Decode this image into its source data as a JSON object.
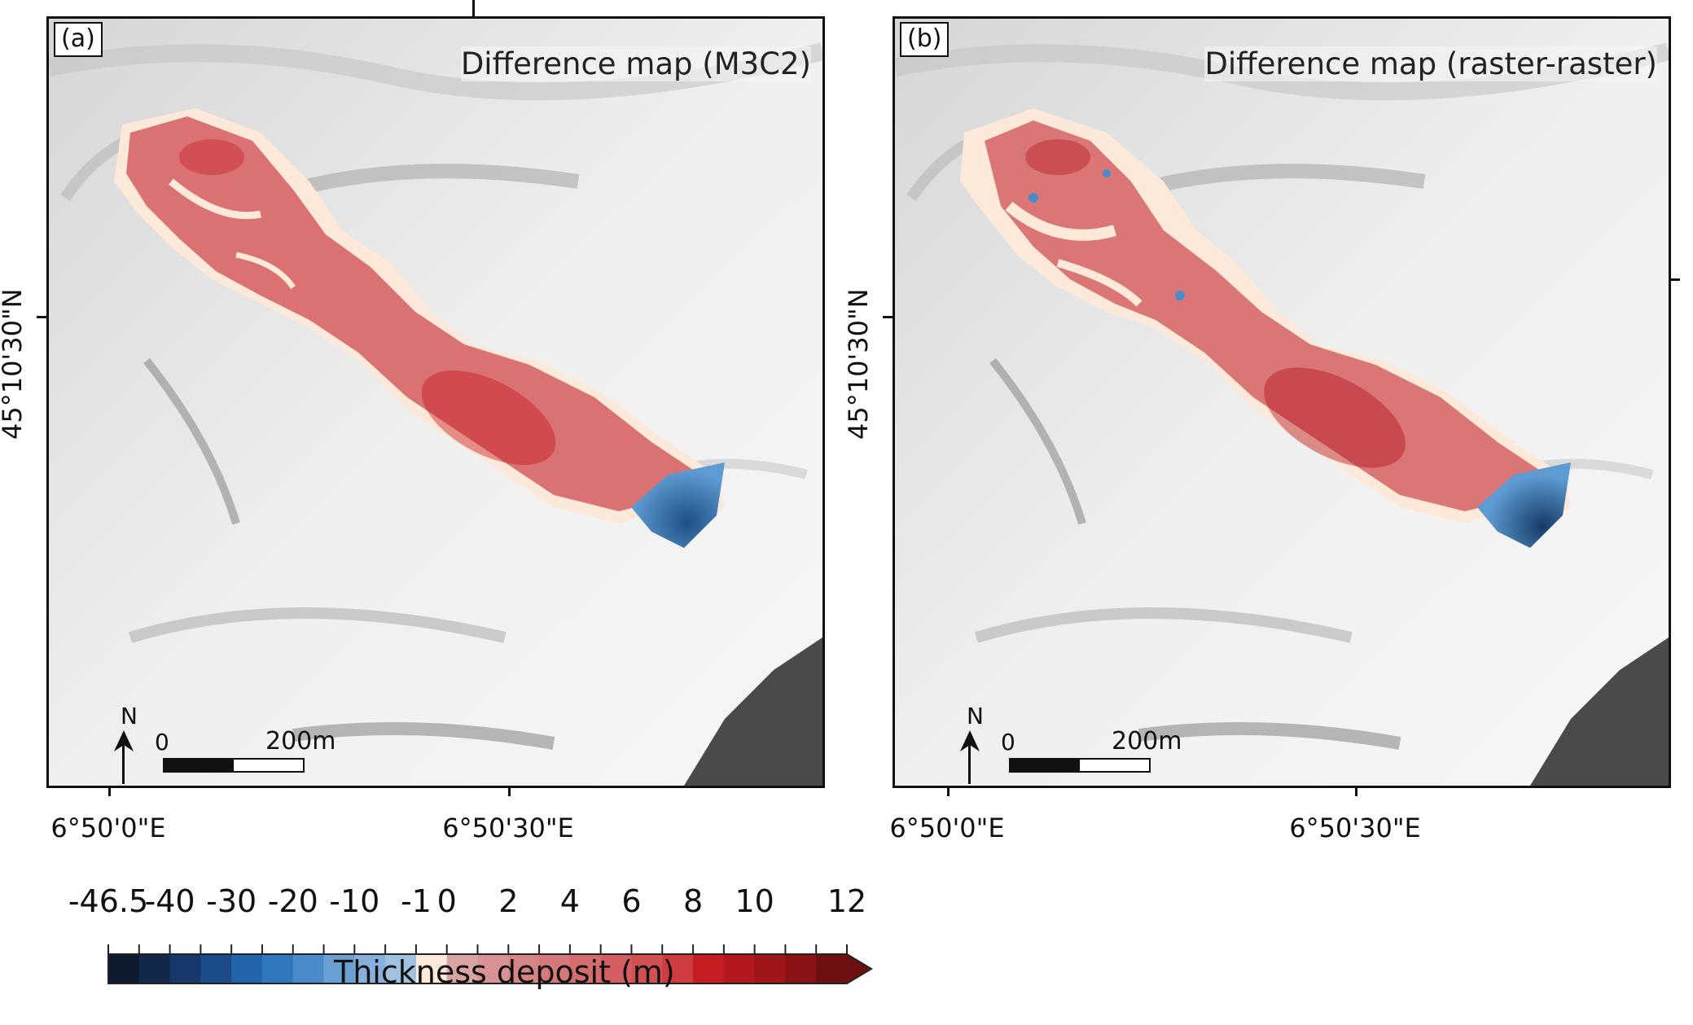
{
  "panels": [
    {
      "label": "(a)",
      "title": "Difference map (M3C2)",
      "lon_labels": [
        "6°50'0\"E",
        "6°50'30\"E"
      ],
      "lat_label": "45°10'30\"N",
      "north": "N",
      "scale_start": "0",
      "scale_end": "200m"
    },
    {
      "label": "(b)",
      "title": "Difference map (raster-raster)",
      "lon_labels": [
        "6°50'0\"E",
        "6°50'30\"E"
      ],
      "lat_label": "45°10'30\"N",
      "north": "N",
      "scale_start": "0",
      "scale_end": "200m"
    }
  ],
  "legend": {
    "title": "Thickness deposit (m)",
    "tick_labels": [
      "-46.5",
      "-40",
      "-30",
      "-20",
      "-10",
      "-1",
      "0",
      "2",
      "4",
      "6",
      "8",
      "10",
      "12"
    ],
    "colors": [
      "#0d1a2e",
      "#12284a",
      "#17386a",
      "#1c4d8a",
      "#2365aa",
      "#2f78be",
      "#4a8ccb",
      "#6a9fd3",
      "#86b0da",
      "#a0c1df",
      "#fde9da",
      "#d9a4a4",
      "#d79293",
      "#d68587",
      "#d5787a",
      "#d46b6d",
      "#d35d60",
      "#d24f52",
      "#cf3b3e",
      "#c61d22",
      "#b4171c",
      "#a01518",
      "#8a1214",
      "#6f1010"
    ],
    "neg_color": "#2a70b8",
    "pos_color": "#d04548",
    "zero_color": "#fde9da"
  }
}
